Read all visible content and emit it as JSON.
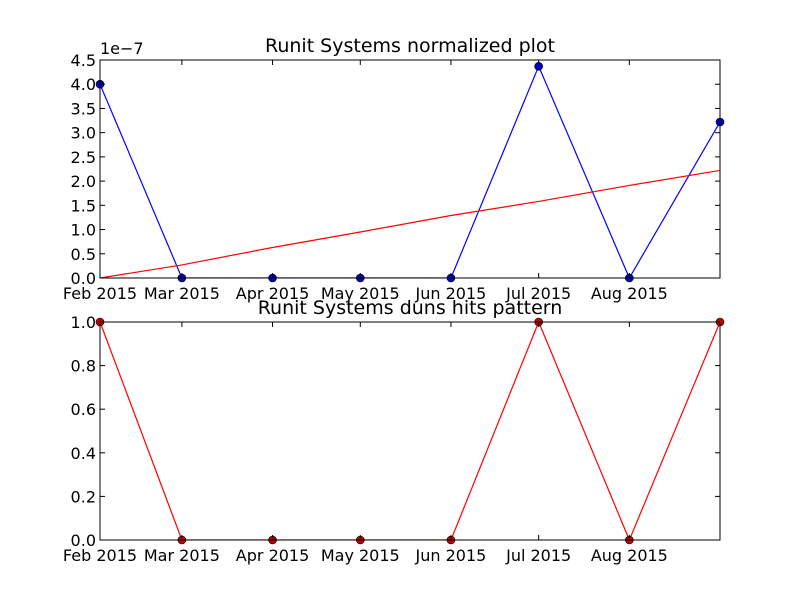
{
  "chart_data": [
    {
      "type": "line",
      "title": "Runit Systems normalized plot",
      "scale_offset": "1e−7",
      "x": [
        "2015-01-31",
        "2015-02-28",
        "2015-03-31",
        "2015-04-30",
        "2015-05-31",
        "2015-06-30",
        "2015-07-31",
        "2015-08-31"
      ],
      "xlim": [
        "2015-01-31",
        "2015-08-31"
      ],
      "xticks": [
        {
          "date": "2015-01-31",
          "label": "Feb 2015"
        },
        {
          "date": "2015-02-28",
          "label": "Mar 2015"
        },
        {
          "date": "2015-03-31",
          "label": "Apr 2015"
        },
        {
          "date": "2015-04-30",
          "label": "May 2015"
        },
        {
          "date": "2015-05-31",
          "label": "Jun 2015"
        },
        {
          "date": "2015-06-30",
          "label": "Jul 2015"
        },
        {
          "date": "2015-07-31",
          "label": "Aug 2015"
        }
      ],
      "ylim": [
        0,
        4.5
      ],
      "yticks": [
        "0.0",
        "0.5",
        "1.0",
        "1.5",
        "2.0",
        "2.5",
        "3.0",
        "3.5",
        "4.0",
        "4.5"
      ],
      "series": [
        {
          "values": [
            4.0,
            0.0,
            0.0,
            0.0,
            0.0,
            4.37,
            0.0,
            3.22
          ],
          "color": "#0000ff",
          "marker": "circle",
          "marker_color": "#0000bf"
        },
        {
          "values": [
            0.0,
            0.27,
            0.63,
            0.95,
            1.29,
            1.58,
            1.91,
            2.22
          ],
          "color": "#ff0000",
          "marker": "none"
        }
      ]
    },
    {
      "type": "line",
      "title": "Runit Systems duns hits pattern",
      "x": [
        "2015-01-31",
        "2015-02-28",
        "2015-03-31",
        "2015-04-30",
        "2015-05-31",
        "2015-06-30",
        "2015-07-31",
        "2015-08-31"
      ],
      "xlim": [
        "2015-01-31",
        "2015-08-31"
      ],
      "xticks": [
        {
          "date": "2015-01-31",
          "label": "Feb 2015"
        },
        {
          "date": "2015-02-28",
          "label": "Mar 2015"
        },
        {
          "date": "2015-03-31",
          "label": "Apr 2015"
        },
        {
          "date": "2015-04-30",
          "label": "May 2015"
        },
        {
          "date": "2015-05-31",
          "label": "Jun 2015"
        },
        {
          "date": "2015-06-30",
          "label": "Jul 2015"
        },
        {
          "date": "2015-07-31",
          "label": "Aug 2015"
        }
      ],
      "ylim": [
        0,
        1.0
      ],
      "yticks": [
        "0.0",
        "0.2",
        "0.4",
        "0.6",
        "0.8",
        "1.0"
      ],
      "series": [
        {
          "values": [
            1,
            0,
            0,
            0,
            0,
            1,
            0,
            1
          ],
          "color": "#ff0000",
          "marker": "circle",
          "marker_color": "#bf0000"
        }
      ]
    }
  ]
}
